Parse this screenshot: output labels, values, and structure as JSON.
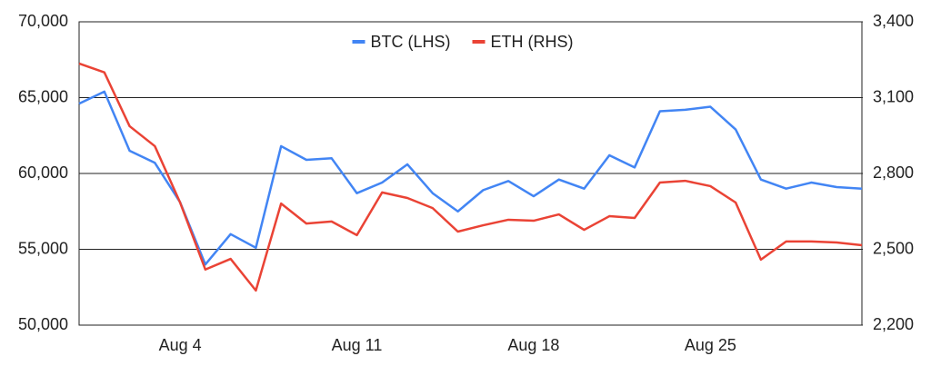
{
  "chart_data": {
    "type": "line",
    "categories": [
      null,
      null,
      null,
      null,
      "Aug 4",
      null,
      null,
      null,
      null,
      null,
      null,
      "Aug 11",
      null,
      null,
      null,
      null,
      null,
      null,
      "Aug 18",
      null,
      null,
      null,
      null,
      null,
      null,
      "Aug 25",
      null,
      null,
      null,
      null,
      null,
      null
    ],
    "series": [
      {
        "name": "BTC (LHS)",
        "color": "#4285f4",
        "axis": "y",
        "values": [
          64600,
          65400,
          61500,
          60700,
          58100,
          54000,
          56000,
          55100,
          61800,
          60900,
          61000,
          58700,
          59400,
          60600,
          58700,
          57500,
          58900,
          59500,
          58500,
          59600,
          59000,
          61200,
          60400,
          64100,
          64200,
          64400,
          62900,
          59600,
          59000,
          59400,
          59100,
          59000
        ]
      },
      {
        "name": "ETH (RHS)",
        "color": "#ea4335",
        "axis": "y2",
        "values": [
          3235,
          3200,
          2987,
          2908,
          2685,
          2420,
          2462,
          2337,
          2681,
          2602,
          2610,
          2556,
          2725,
          2703,
          2663,
          2570,
          2595,
          2617,
          2613,
          2638,
          2577,
          2631,
          2624,
          2764,
          2771,
          2750,
          2685,
          2459,
          2531,
          2531,
          2527,
          2516
        ]
      }
    ],
    "ylim": [
      50000,
      70000
    ],
    "yticks": [
      {
        "value": 50000,
        "label": "50,000"
      },
      {
        "value": 55000,
        "label": "55,000"
      },
      {
        "value": 60000,
        "label": "60,000"
      },
      {
        "value": 65000,
        "label": "65,000"
      },
      {
        "value": 70000,
        "label": "70,000"
      }
    ],
    "y2lim": [
      2200,
      3400
    ],
    "y2ticks": [
      {
        "value": 2200,
        "label": "2,200"
      },
      {
        "value": 2500,
        "label": "2,500"
      },
      {
        "value": 2800,
        "label": "2,800"
      },
      {
        "value": 3100,
        "label": "3,100"
      },
      {
        "value": 3400,
        "label": "3,400"
      }
    ],
    "grid": true,
    "legend": "top"
  }
}
